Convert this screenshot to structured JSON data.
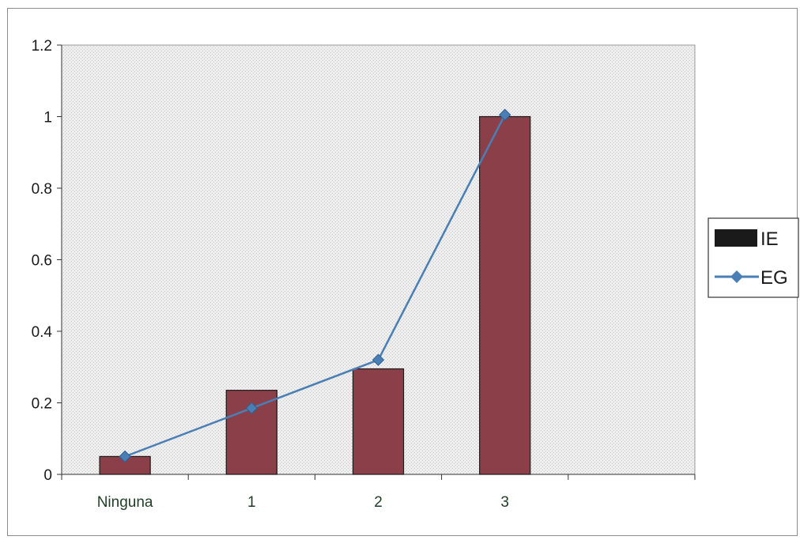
{
  "chart_data": {
    "type": "bar+line",
    "categories": [
      "Ninguna",
      "1",
      "2",
      "3",
      ""
    ],
    "series": [
      {
        "name": "IE",
        "kind": "bar",
        "color": "#8b4049",
        "values": [
          0.05,
          0.235,
          0.295,
          1.0,
          null
        ]
      },
      {
        "name": "EG",
        "kind": "line",
        "color": "#4a7fb5",
        "values": [
          0.05,
          0.185,
          0.32,
          1.005,
          null
        ]
      }
    ],
    "title": "",
    "xlabel": "",
    "ylabel": "",
    "ylim": [
      0,
      1.2
    ],
    "yticks": [
      "0",
      "0.2",
      "0.4",
      "0.6",
      "0.8",
      "1",
      "1.2"
    ],
    "grid": false,
    "legend_position": "right",
    "plot_background": "#e6e6e6"
  }
}
